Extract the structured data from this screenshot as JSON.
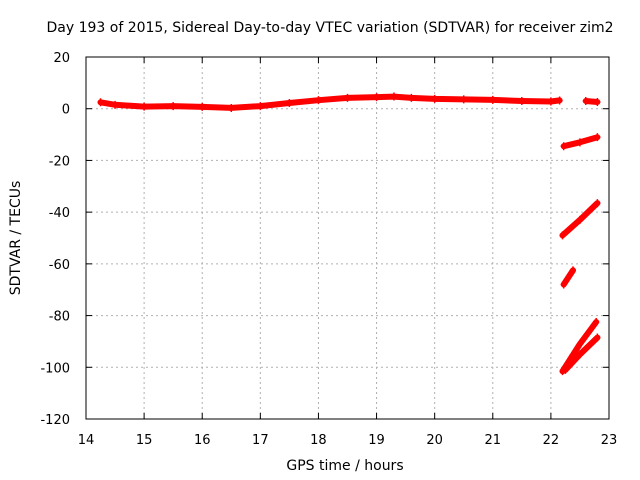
{
  "chart_data": {
    "type": "scatter",
    "title": "Day 193 of 2015, Sidereal Day-to-day VTEC variation (SDTVAR) for receiver zim2",
    "xlabel": "GPS time / hours",
    "ylabel": "SDTVAR / TECUs",
    "xlim": [
      14,
      23
    ],
    "ylim": [
      -120,
      20
    ],
    "xticks": [
      "14",
      "15",
      "16",
      "17",
      "18",
      "19",
      "20",
      "21",
      "22",
      "23"
    ],
    "yticks": [
      "20",
      "0",
      "-20",
      "-40",
      "-60",
      "-80",
      "-100",
      "-120"
    ],
    "grid": true,
    "legend": "none",
    "series_color": "#ff0000",
    "series": [
      {
        "values": [
          [
            14.25,
            2.5
          ],
          [
            14.5,
            1.5
          ],
          [
            15.0,
            0.8
          ],
          [
            15.5,
            1.0
          ],
          [
            16.0,
            0.7
          ],
          [
            16.5,
            0.3
          ],
          [
            17.0,
            1.0
          ],
          [
            17.5,
            2.2
          ],
          [
            18.0,
            3.3
          ],
          [
            18.5,
            4.2
          ],
          [
            19.0,
            4.5
          ],
          [
            19.3,
            4.7
          ],
          [
            19.6,
            4.2
          ],
          [
            20.0,
            3.8
          ],
          [
            20.5,
            3.6
          ],
          [
            21.0,
            3.4
          ],
          [
            21.5,
            3.0
          ],
          [
            22.0,
            2.8
          ],
          [
            22.15,
            3.2
          ]
        ]
      },
      {
        "values": [
          [
            22.6,
            3.0
          ],
          [
            22.8,
            2.6
          ]
        ]
      },
      {
        "values": [
          [
            22.22,
            -14.5
          ],
          [
            22.5,
            -13.0
          ],
          [
            22.8,
            -11.0
          ]
        ]
      },
      {
        "values": [
          [
            22.2,
            -49.0
          ],
          [
            22.5,
            -43.0
          ],
          [
            22.8,
            -36.5
          ]
        ]
      },
      {
        "values": [
          [
            22.22,
            -68.0
          ],
          [
            22.38,
            -62.5
          ]
        ]
      },
      {
        "values": [
          [
            22.2,
            -101.5
          ],
          [
            22.5,
            -91.0
          ],
          [
            22.78,
            -82.5
          ]
        ]
      },
      {
        "values": [
          [
            22.25,
            -101.0
          ],
          [
            22.5,
            -95.0
          ],
          [
            22.8,
            -88.5
          ]
        ]
      }
    ]
  }
}
